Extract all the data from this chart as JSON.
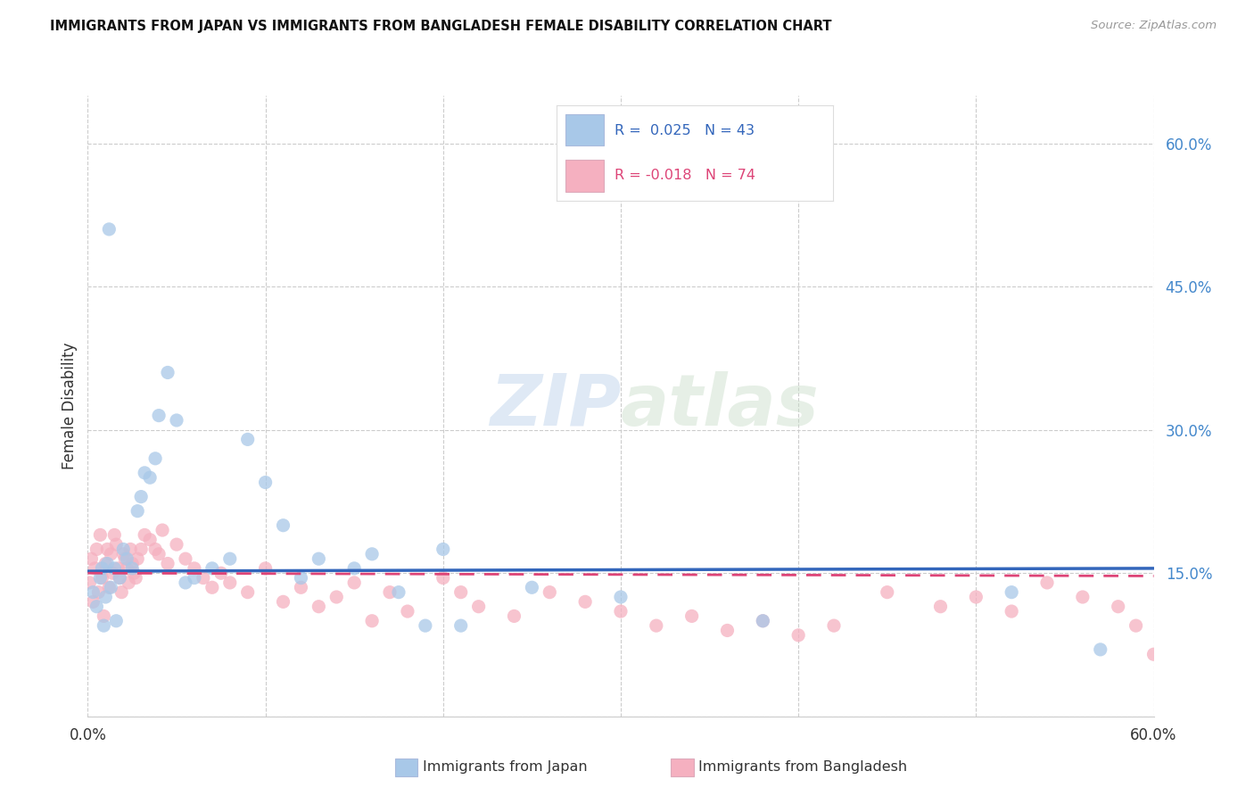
{
  "title": "IMMIGRANTS FROM JAPAN VS IMMIGRANTS FROM BANGLADESH FEMALE DISABILITY CORRELATION CHART",
  "source": "Source: ZipAtlas.com",
  "ylabel": "Female Disability",
  "xlim": [
    0.0,
    0.6
  ],
  "ylim": [
    0.0,
    0.65
  ],
  "ytick_vals": [
    0.0,
    0.15,
    0.3,
    0.45,
    0.6
  ],
  "xtick_vals": [
    0.0,
    0.1,
    0.2,
    0.3,
    0.4,
    0.5,
    0.6
  ],
  "watermark_zip": "ZIP",
  "watermark_atlas": "atlas",
  "legend_r_japan": " 0.025",
  "legend_n_japan": "43",
  "legend_r_bangladesh": "-0.018",
  "legend_n_bangladesh": "74",
  "color_japan": "#a8c8e8",
  "color_bangladesh": "#f5b0c0",
  "line_color_japan": "#3366bb",
  "line_color_bangladesh": "#dd4477",
  "japan_x": [
    0.003,
    0.005,
    0.007,
    0.008,
    0.009,
    0.01,
    0.011,
    0.012,
    0.013,
    0.015,
    0.016,
    0.018,
    0.02,
    0.022,
    0.025,
    0.028,
    0.03,
    0.032,
    0.035,
    0.038,
    0.04,
    0.045,
    0.05,
    0.055,
    0.06,
    0.07,
    0.08,
    0.09,
    0.1,
    0.11,
    0.12,
    0.13,
    0.15,
    0.16,
    0.175,
    0.19,
    0.2,
    0.21,
    0.25,
    0.3,
    0.38,
    0.52,
    0.57
  ],
  "japan_y": [
    0.13,
    0.115,
    0.145,
    0.155,
    0.095,
    0.125,
    0.16,
    0.51,
    0.135,
    0.155,
    0.1,
    0.145,
    0.175,
    0.165,
    0.155,
    0.215,
    0.23,
    0.255,
    0.25,
    0.27,
    0.315,
    0.36,
    0.31,
    0.14,
    0.145,
    0.155,
    0.165,
    0.29,
    0.245,
    0.2,
    0.145,
    0.165,
    0.155,
    0.17,
    0.13,
    0.095,
    0.175,
    0.095,
    0.135,
    0.125,
    0.1,
    0.13,
    0.07
  ],
  "bangladesh_x": [
    0.001,
    0.002,
    0.003,
    0.004,
    0.005,
    0.006,
    0.007,
    0.008,
    0.009,
    0.01,
    0.011,
    0.012,
    0.013,
    0.014,
    0.015,
    0.016,
    0.017,
    0.018,
    0.019,
    0.02,
    0.021,
    0.022,
    0.023,
    0.024,
    0.025,
    0.026,
    0.027,
    0.028,
    0.03,
    0.032,
    0.035,
    0.038,
    0.04,
    0.042,
    0.045,
    0.05,
    0.055,
    0.06,
    0.065,
    0.07,
    0.075,
    0.08,
    0.09,
    0.1,
    0.11,
    0.12,
    0.13,
    0.14,
    0.15,
    0.16,
    0.17,
    0.18,
    0.2,
    0.21,
    0.22,
    0.24,
    0.26,
    0.28,
    0.3,
    0.32,
    0.34,
    0.36,
    0.38,
    0.4,
    0.42,
    0.45,
    0.48,
    0.5,
    0.52,
    0.54,
    0.56,
    0.58,
    0.59,
    0.6
  ],
  "bangladesh_y": [
    0.14,
    0.165,
    0.12,
    0.155,
    0.175,
    0.13,
    0.19,
    0.145,
    0.105,
    0.16,
    0.175,
    0.135,
    0.17,
    0.15,
    0.19,
    0.18,
    0.155,
    0.145,
    0.13,
    0.17,
    0.165,
    0.155,
    0.14,
    0.175,
    0.16,
    0.15,
    0.145,
    0.165,
    0.175,
    0.19,
    0.185,
    0.175,
    0.17,
    0.195,
    0.16,
    0.18,
    0.165,
    0.155,
    0.145,
    0.135,
    0.15,
    0.14,
    0.13,
    0.155,
    0.12,
    0.135,
    0.115,
    0.125,
    0.14,
    0.1,
    0.13,
    0.11,
    0.145,
    0.13,
    0.115,
    0.105,
    0.13,
    0.12,
    0.11,
    0.095,
    0.105,
    0.09,
    0.1,
    0.085,
    0.095,
    0.13,
    0.115,
    0.125,
    0.11,
    0.14,
    0.125,
    0.115,
    0.095,
    0.065
  ]
}
